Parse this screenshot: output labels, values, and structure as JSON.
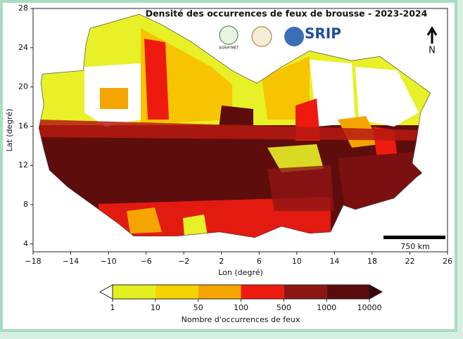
{
  "map": {
    "title": "Densité des occurrences de feux de brousse - 2023-2024",
    "xlabel": "Lon (degré)",
    "ylabel": "Lat (degré)",
    "xlim": [
      -18,
      26
    ],
    "ylim": [
      3.2,
      28
    ],
    "xticks": [
      {
        "value": -18,
        "label": "−18"
      },
      {
        "value": -14,
        "label": "−14"
      },
      {
        "value": -10,
        "label": "−10"
      },
      {
        "value": -6,
        "label": "−6"
      },
      {
        "value": -2,
        "label": "−2"
      },
      2,
      6,
      10,
      14,
      18,
      22,
      26
    ],
    "yticks": [
      4,
      8,
      12,
      16,
      20,
      24,
      28
    ],
    "logos": {
      "agrhymet": "AGRHYMET",
      "srip": "SRIP"
    },
    "north": "N",
    "scale_bar": "750 km",
    "colorbar": {
      "label": "Nombre d'occurrences de feux",
      "ticks": [
        1,
        10,
        50,
        100,
        500,
        1000,
        10000
      ],
      "colors": [
        "#e4f01e",
        "#f5d200",
        "#f5a500",
        "#ee1a10",
        "#8e1515",
        "#5a0c0c"
      ],
      "under_color": "#ffffff",
      "over_color": "#3a0606"
    }
  }
}
